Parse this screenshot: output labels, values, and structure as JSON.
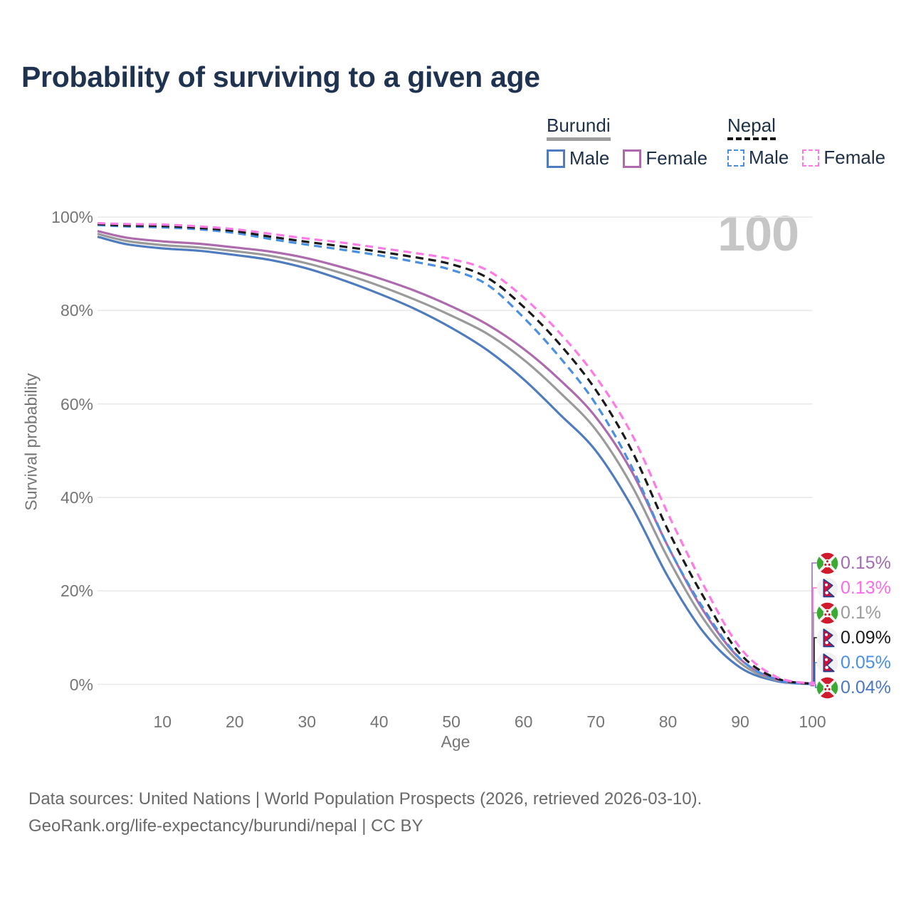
{
  "title": "Probability of surviving to a given age",
  "watermark": "100",
  "legend": {
    "groups": [
      {
        "label": "Burundi",
        "underline_color": "#9e9e9e",
        "underline_style": "solid",
        "items": [
          {
            "label": "Male",
            "color": "#4f7cbe",
            "dash": false
          },
          {
            "label": "Female",
            "color": "#ad6bae",
            "dash": false
          }
        ]
      },
      {
        "label": "Nepal",
        "underline_color": "#141414",
        "underline_style": "dashed",
        "items": [
          {
            "label": "Male",
            "color": "#4a90e2",
            "dash": true
          },
          {
            "label": "Female",
            "color": "#ff7ae5",
            "dash": true
          }
        ]
      }
    ]
  },
  "chart_data": {
    "type": "line",
    "title": "Probability of surviving to a given age",
    "xlabel": "Age",
    "ylabel": "Survival probability",
    "xlim": [
      1,
      100
    ],
    "ylim": [
      0,
      100
    ],
    "grid": "horizontal",
    "x_ticks": [
      {
        "value": 10,
        "label": "10"
      },
      {
        "value": 20,
        "label": "20"
      },
      {
        "value": 30,
        "label": "30"
      },
      {
        "value": 40,
        "label": "40"
      },
      {
        "value": 50,
        "label": "50"
      },
      {
        "value": 60,
        "label": "60"
      },
      {
        "value": 70,
        "label": "70"
      },
      {
        "value": 80,
        "label": "80"
      },
      {
        "value": 90,
        "label": "90"
      },
      {
        "value": 100,
        "label": "100"
      }
    ],
    "y_ticks": [
      {
        "value": 0,
        "label": "0%"
      },
      {
        "value": 20,
        "label": "20%"
      },
      {
        "value": 40,
        "label": "40%"
      },
      {
        "value": 60,
        "label": "60%"
      },
      {
        "value": 80,
        "label": "80%"
      },
      {
        "value": 100,
        "label": "100%"
      }
    ],
    "x": [
      1,
      5,
      10,
      15,
      20,
      25,
      30,
      35,
      40,
      45,
      50,
      55,
      60,
      65,
      70,
      75,
      80,
      85,
      90,
      95,
      100
    ],
    "series": [
      {
        "name": "Burundi Male",
        "country": "Burundi",
        "sex": "Male",
        "color": "#4f7cbe",
        "dash": "solid",
        "values": [
          95.8,
          94.2,
          93.3,
          92.8,
          91.9,
          90.8,
          89.0,
          86.5,
          83.6,
          80.3,
          76.3,
          71.5,
          65.3,
          57.8,
          50.0,
          38.0,
          23.0,
          11.0,
          3.6,
          0.7,
          0.04
        ]
      },
      {
        "name": "Burundi",
        "country": "Burundi",
        "sex": "Both",
        "color": "#9a9a9a",
        "dash": "solid",
        "values": [
          96.4,
          94.9,
          94.0,
          93.5,
          92.7,
          91.7,
          90.1,
          87.9,
          85.3,
          82.3,
          78.9,
          75.0,
          69.5,
          62.5,
          54.5,
          42.5,
          27.0,
          13.8,
          4.6,
          0.9,
          0.1
        ]
      },
      {
        "name": "Burundi Female",
        "country": "Burundi",
        "sex": "Female",
        "color": "#ad6bae",
        "dash": "solid",
        "values": [
          97.0,
          95.6,
          94.8,
          94.3,
          93.5,
          92.6,
          91.2,
          89.2,
          86.9,
          84.2,
          80.9,
          77.0,
          71.8,
          65.2,
          57.2,
          45.5,
          29.5,
          15.5,
          5.4,
          1.1,
          0.15
        ]
      },
      {
        "name": "Nepal Male",
        "country": "Nepal",
        "sex": "Male",
        "color": "#4a90e2",
        "dash": "dashed",
        "values": [
          98.3,
          98.0,
          97.8,
          97.4,
          96.6,
          95.3,
          94.1,
          93.0,
          91.8,
          90.4,
          88.7,
          85.5,
          78.5,
          70.0,
          60.0,
          46.5,
          29.5,
          16.0,
          5.5,
          1.0,
          0.05
        ]
      },
      {
        "name": "Nepal",
        "country": "Nepal",
        "sex": "Both",
        "color": "#1a1a1a",
        "dash": "dashed",
        "values": [
          98.5,
          98.2,
          98.1,
          97.7,
          97.0,
          95.8,
          94.7,
          93.7,
          92.6,
          91.4,
          89.9,
          87.0,
          80.8,
          72.8,
          63.0,
          50.0,
          33.0,
          18.5,
          6.5,
          1.3,
          0.09
        ]
      },
      {
        "name": "Nepal Female",
        "country": "Nepal",
        "sex": "Female",
        "color": "#ff7ae5",
        "dash": "dashed",
        "values": [
          98.7,
          98.5,
          98.4,
          98.0,
          97.4,
          96.4,
          95.4,
          94.5,
          93.4,
          92.3,
          91.0,
          88.6,
          82.8,
          75.2,
          65.8,
          53.5,
          36.5,
          21.0,
          7.8,
          1.6,
          0.13
        ]
      }
    ]
  },
  "end_labels": [
    {
      "flag": "burundi-flag",
      "series": "Burundi Female",
      "text": "0.15%",
      "color": "#a26cb5"
    },
    {
      "flag": "nepal-flag",
      "series": "Nepal Female",
      "text": "0.13%",
      "color": "#fb6be8"
    },
    {
      "flag": "burundi-flag",
      "series": "Burundi",
      "text": "0.1%",
      "color": "#9b9b9b"
    },
    {
      "flag": "nepal-flag",
      "series": "Nepal",
      "text": "0.09%",
      "color": "#1a1a1a"
    },
    {
      "flag": "nepal-flag",
      "series": "Nepal Male",
      "text": "0.05%",
      "color": "#4a90e2"
    },
    {
      "flag": "burundi-flag",
      "series": "Burundi Male",
      "text": "0.04%",
      "color": "#4a77c6"
    }
  ],
  "footer": {
    "line1": "Data sources: United Nations | World Population Prospects (2026, retrieved 2026-03-10).",
    "line2": "GeoRank.org/life-expectancy/burundi/nepal | CC BY"
  }
}
